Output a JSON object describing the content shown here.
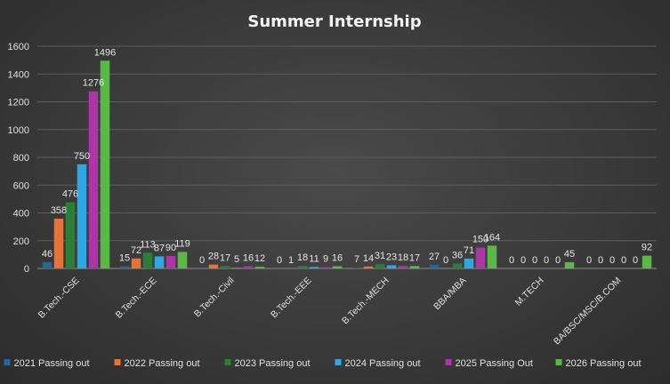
{
  "chart_data": {
    "type": "bar",
    "title": "Summer Internship",
    "categories": [
      "B.Tech.-CSE",
      "B.Tech.-ECE",
      "B.Tech.-Civil",
      "B.Tech.-EEE",
      "B.Tech.-MECH",
      "BBA/MBA",
      "M.TECH",
      "BA/BSC/MSC/B.COM"
    ],
    "series": [
      {
        "name": "2021 Passing out",
        "color": "#24689a",
        "values": [
          46,
          15,
          0,
          0,
          7,
          27,
          0,
          0
        ]
      },
      {
        "name": "2022 Passing out",
        "color": "#e8733a",
        "values": [
          358,
          72,
          28,
          1,
          14,
          0,
          0,
          0
        ]
      },
      {
        "name": "2023 Passing out",
        "color": "#2a7f37",
        "values": [
          476,
          113,
          17,
          18,
          31,
          36,
          0,
          0
        ]
      },
      {
        "name": "2024 Passing out",
        "color": "#2ea8e4",
        "values": [
          750,
          87,
          5,
          11,
          23,
          71,
          0,
          0
        ]
      },
      {
        "name": "2025 Passing Out",
        "color": "#ad35a8",
        "values": [
          1276,
          90,
          16,
          9,
          18,
          150,
          0,
          0
        ]
      },
      {
        "name": "2026 Passing out",
        "color": "#5ab847",
        "values": [
          1496,
          119,
          12,
          16,
          17,
          164,
          45,
          92
        ]
      }
    ],
    "ylim": [
      0,
      1600
    ],
    "yticks": [
      0,
      200,
      400,
      600,
      800,
      1000,
      1200,
      1400,
      1600
    ],
    "grid": true,
    "legend_position": "bottom"
  }
}
